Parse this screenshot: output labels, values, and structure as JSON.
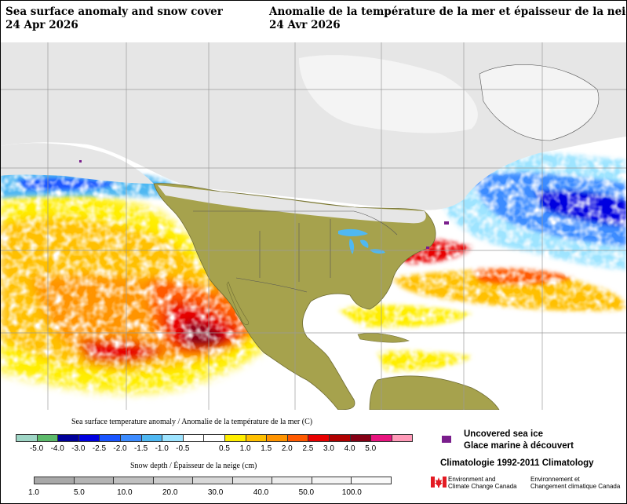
{
  "title": {
    "english": "Sea surface anomaly and snow cover",
    "english_date": "24 Apr 2026",
    "french": "Anomalie de la température de la mer et épaisseur de la neige",
    "french_date": "24 Avr 2026"
  },
  "sst_legend": {
    "caption": "Sea surface temperature anomaly / Anomalie de la température de la mer (C)",
    "colors": [
      "#9fd6c6",
      "#5cba6a",
      "#00009a",
      "#0000e0",
      "#1a55ff",
      "#3d8cff",
      "#4fb8f2",
      "#9ee4ff",
      "#ffffff",
      "#ffffff",
      "#ffee00",
      "#ffc000",
      "#ff9400",
      "#ff5a00",
      "#e80000",
      "#b00000",
      "#850015",
      "#e8157f",
      "#ff9ab8"
    ],
    "ticks": [
      "-5.0",
      "-4.0",
      "-3.0",
      "-2.5",
      "-2.0",
      "-1.5",
      "-1.0",
      "-0.5",
      "0.5",
      "1.0",
      "1.5",
      "2.0",
      "2.5",
      "3.0",
      "4.0",
      "5.0"
    ]
  },
  "snow_legend": {
    "caption": "Snow depth / Épaisseur de la neige (cm)",
    "colors": [
      "#a8a8a8",
      "#b4b4b4",
      "#c0c0c0",
      "#cccccc",
      "#d8d8d8",
      "#e2e2e2",
      "#ececec",
      "#f4f4f4",
      "#fafafa"
    ],
    "ticks": [
      "1.0",
      "5.0",
      "10.0",
      "20.0",
      "30.0",
      "40.0",
      "50.0",
      "100.0"
    ]
  },
  "sea_ice": {
    "english": "Uncovered sea ice",
    "french": "Glace marine à découvert",
    "color": "#7a1e8c"
  },
  "climatology": "Climatologie 1992-2011 Climatology",
  "agency": {
    "english_line1": "Environment and",
    "english_line2": "Climate Change Canada",
    "french_line1": "Environnement et",
    "french_line2": "Changement climatique Canada"
  },
  "map_colors": {
    "ocean_neutral": "#ffffff",
    "land": "#a6a24d",
    "snow": "#e6e6e6",
    "warm": "#ffc000",
    "hot": "#e80000",
    "very_hot": "#850015",
    "cool": "#3d8cff",
    "cold": "#0000e0"
  }
}
